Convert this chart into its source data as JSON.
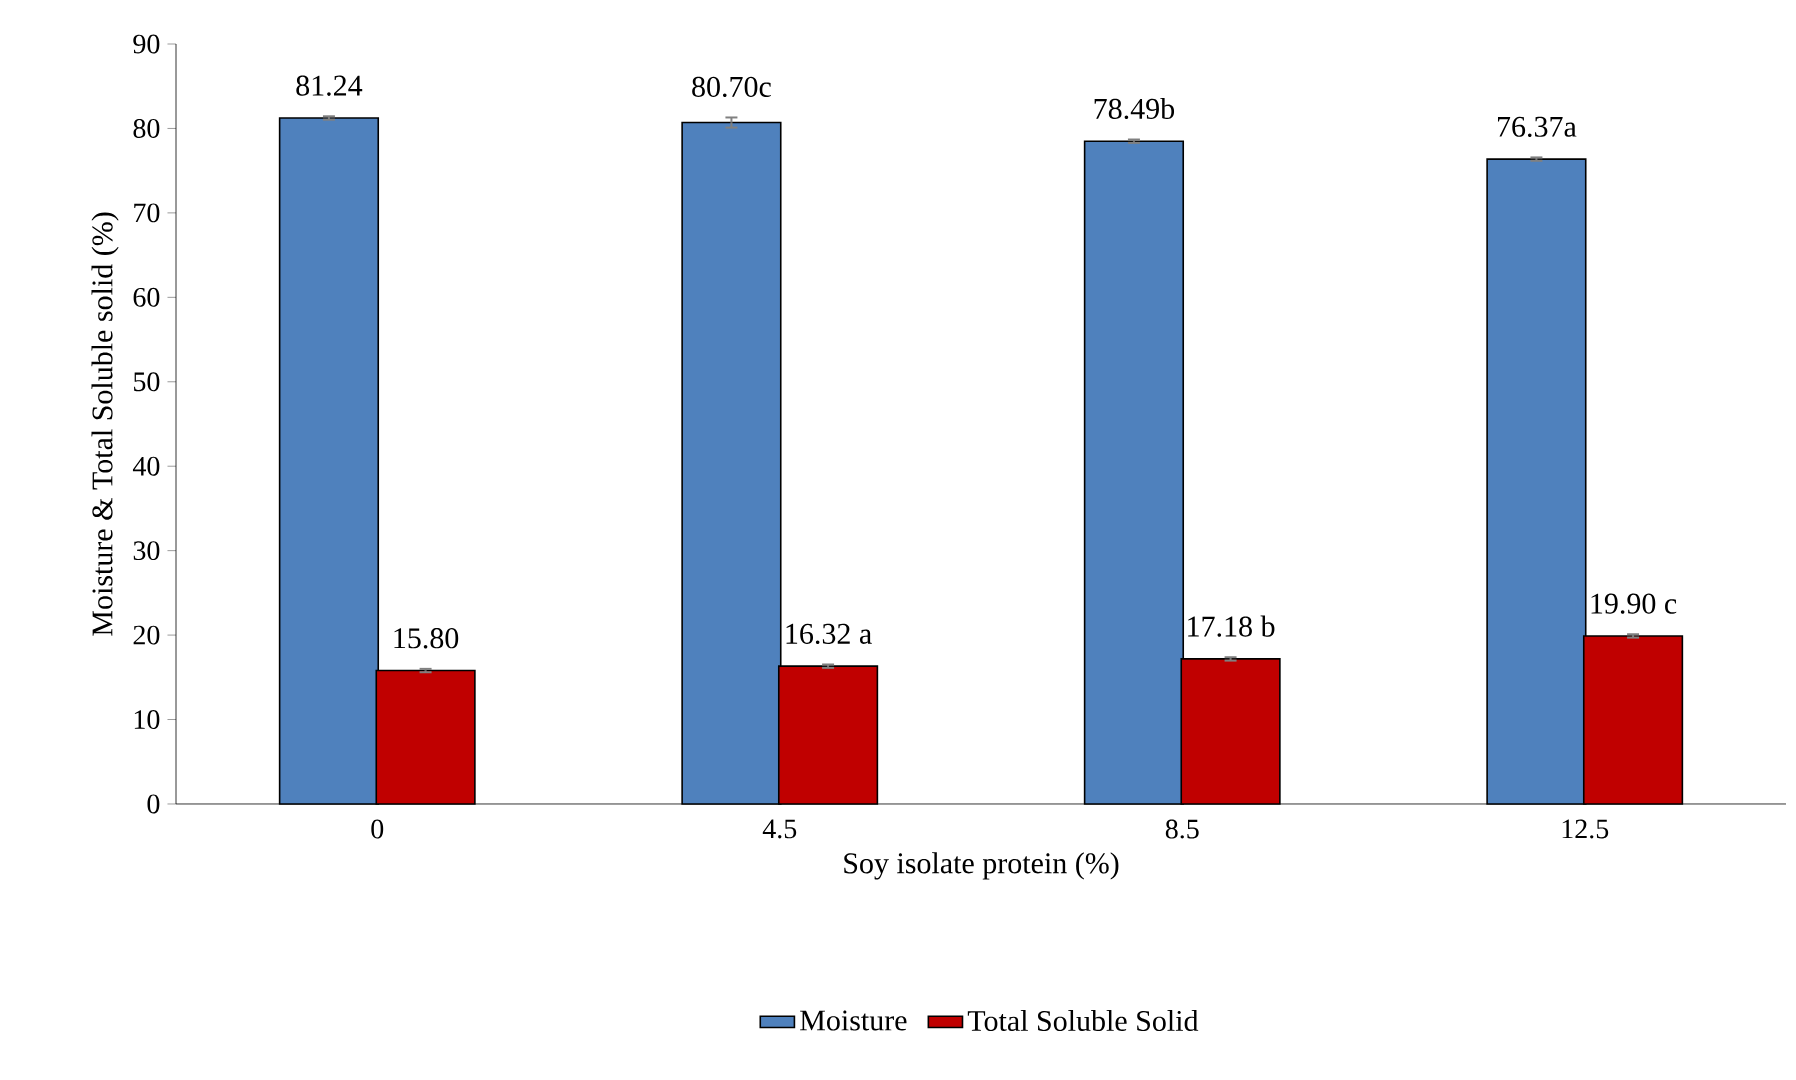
{
  "chart_data": {
    "type": "bar",
    "xlabel": "Soy isolate protein (%)",
    "ylabel": "Moisture & Total Soluble solid (%)",
    "categories": [
      "0",
      "4.5",
      "8.5",
      "12.5"
    ],
    "series": [
      {
        "name": "Moisture",
        "color": "#4f81bd",
        "values": [
          81.24,
          80.7,
          78.49,
          76.37
        ],
        "errors": [
          0.2,
          0.6,
          0.2,
          0.2
        ],
        "value_labels": [
          "81.24",
          "80.70c",
          "78.49b",
          "76.37a"
        ]
      },
      {
        "name": "Total Soluble Solid",
        "color": "#c00000",
        "values": [
          15.8,
          16.32,
          17.18,
          19.9
        ],
        "errors": [
          0.2,
          0.2,
          0.2,
          0.2
        ],
        "value_labels": [
          "15.80",
          "16.32 a",
          "17.18 b",
          "19.90 c"
        ]
      }
    ],
    "ylim": [
      0,
      90
    ],
    "yticks": [
      0,
      10,
      20,
      30,
      40,
      50,
      60,
      70,
      80,
      90
    ],
    "grid": false,
    "legend": "bottom"
  }
}
